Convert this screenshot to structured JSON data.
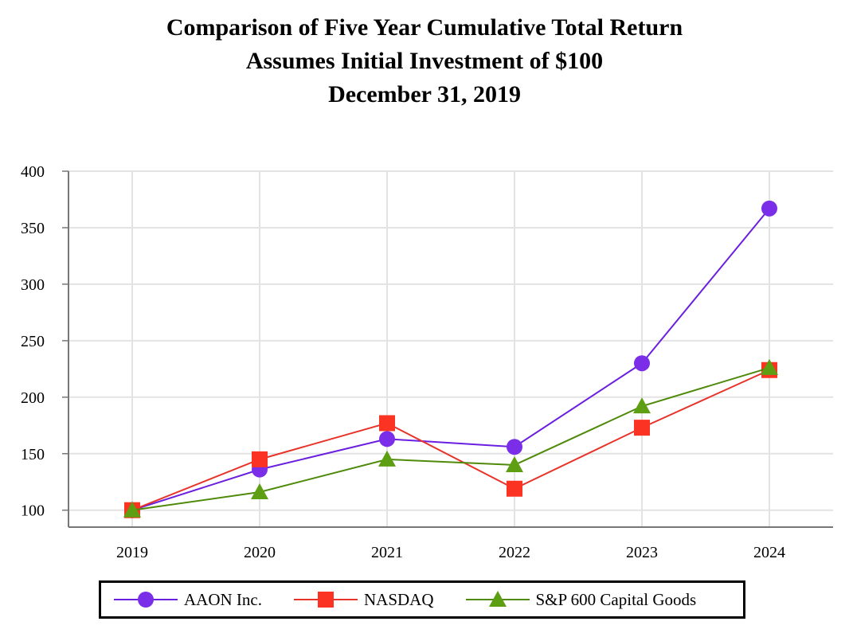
{
  "chart_data": {
    "type": "line",
    "title": [
      "Comparison of Five Year Cumulative Total Return",
      "Assumes Initial Investment of $100",
      "December 31, 2019"
    ],
    "categories": [
      "2019",
      "2020",
      "2021",
      "2022",
      "2023",
      "2024"
    ],
    "ylim": [
      85,
      400
    ],
    "yticks": [
      100,
      150,
      200,
      250,
      300,
      350,
      400
    ],
    "xlabel": "",
    "ylabel": "",
    "grid": true,
    "legend_position": "bottom",
    "series": [
      {
        "name": "AAON Inc.",
        "marker": "circle",
        "color": "#6a1fe0",
        "marker_color": "#7b2ee8",
        "values": [
          100,
          136,
          163,
          156,
          230,
          367
        ]
      },
      {
        "name": "NASDAQ",
        "marker": "square",
        "color": "#e8332a",
        "marker_color": "#fb3323",
        "values": [
          100,
          145,
          177,
          119,
          173,
          224
        ]
      },
      {
        "name": "S&P 600 Capital Goods",
        "marker": "triangle",
        "color": "#4f8a0b",
        "marker_color": "#5e9e12",
        "values": [
          100,
          116,
          145,
          140,
          192,
          226
        ]
      }
    ]
  }
}
